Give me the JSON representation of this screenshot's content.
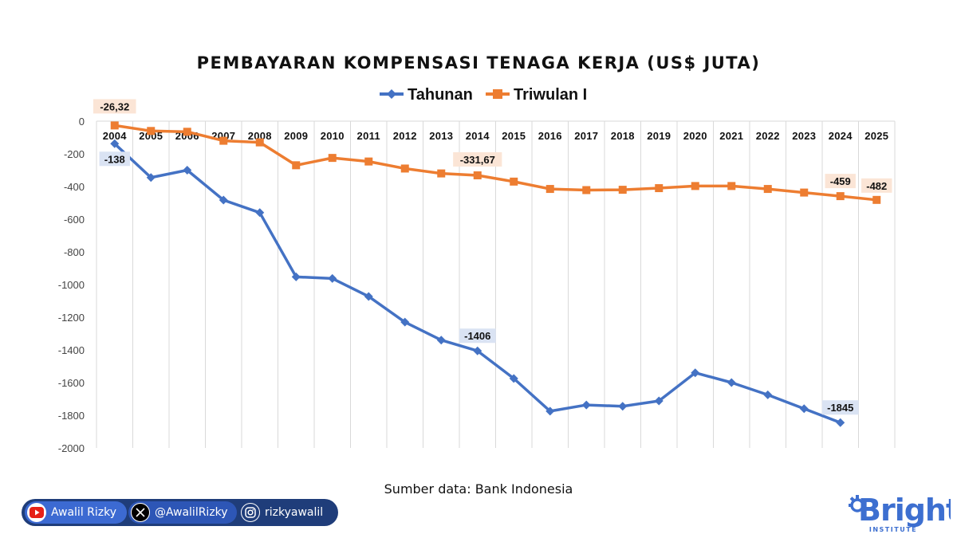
{
  "chart_data": {
    "type": "line",
    "title": "PEMBAYARAN KOMPENSASI TENAGA KERJA (US$ JUTA)",
    "categories": [
      "2004",
      "2005",
      "2006",
      "2007",
      "2008",
      "2009",
      "2010",
      "2011",
      "2012",
      "2013",
      "2014",
      "2015",
      "2016",
      "2017",
      "2018",
      "2019",
      "2020",
      "2021",
      "2022",
      "2023",
      "2024",
      "2025"
    ],
    "series": [
      {
        "name": "Tahunan",
        "color": "#4472c4",
        "marker": "diamond",
        "values": [
          -138,
          -345,
          -300,
          -483,
          -560,
          -953,
          -963,
          -1073,
          -1230,
          -1340,
          -1406,
          -1575,
          -1775,
          -1737,
          -1745,
          -1712,
          -1540,
          -1600,
          -1675,
          -1760,
          -1845,
          null
        ]
      },
      {
        "name": "Triwulan I",
        "color": "#ed7d31",
        "marker": "square",
        "values": [
          -26.32,
          -60,
          -65,
          -120,
          -130,
          -270,
          -225,
          -247,
          -290,
          -320,
          -331.67,
          -370,
          -415,
          -422,
          -420,
          -410,
          -397,
          -397,
          -415,
          -437,
          -459,
          -482
        ]
      }
    ],
    "data_labels": [
      {
        "series": 0,
        "index": 0,
        "text": "-138"
      },
      {
        "series": 0,
        "index": 10,
        "text": "-1406"
      },
      {
        "series": 0,
        "index": 20,
        "text": "-1845"
      },
      {
        "series": 1,
        "index": 0,
        "text": "-26,32"
      },
      {
        "series": 1,
        "index": 10,
        "text": "-331,67"
      },
      {
        "series": 1,
        "index": 20,
        "text": "-459"
      },
      {
        "series": 1,
        "index": 21,
        "text": "-482"
      }
    ],
    "yticks": [
      "0",
      "-200",
      "-400",
      "-600",
      "-800",
      "-1000",
      "-1200",
      "-1400",
      "-1600",
      "-1800",
      "-2000"
    ],
    "ylim": [
      -2000,
      0
    ],
    "grid": "vertical",
    "legend": "top-center",
    "xlabel": "",
    "ylabel": ""
  },
  "source": "Sumber data: Bank Indonesia",
  "social": {
    "youtube": "Awalil Rizky",
    "x": "@AwalilRizky",
    "instagram": "rizkyawalil"
  },
  "brand": {
    "name": "Bright",
    "sub": "INSTITUTE",
    "color": "#3d6fd0"
  }
}
